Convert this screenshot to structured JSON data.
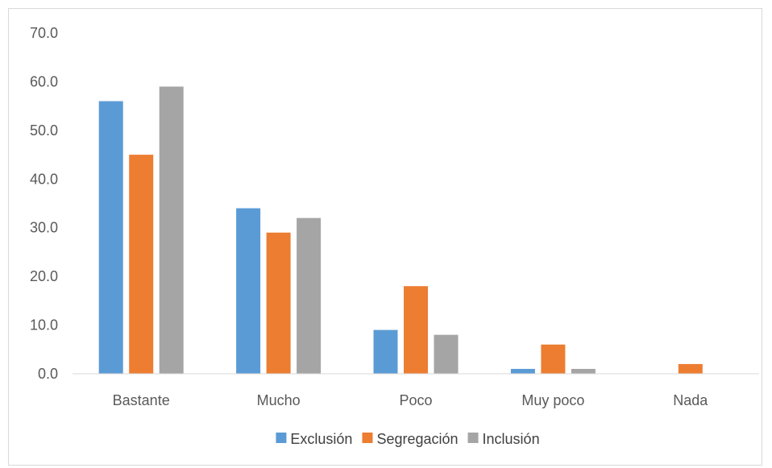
{
  "chart_data": {
    "type": "bar",
    "categories": [
      "Bastante",
      "Mucho",
      "Poco",
      "Muy poco",
      "Nada"
    ],
    "series": [
      {
        "name": "Exclusión",
        "color": "#5b9bd5",
        "values": [
          56.0,
          34.0,
          9.0,
          1.0,
          0.0
        ]
      },
      {
        "name": "Segregación",
        "color": "#ed7d31",
        "values": [
          45.0,
          29.0,
          18.0,
          6.0,
          2.0
        ]
      },
      {
        "name": "Inclusión",
        "color": "#a5a5a5",
        "values": [
          59.0,
          32.0,
          8.0,
          1.0,
          0.0
        ]
      }
    ],
    "y_ticks": [
      "0.0",
      "10.0",
      "20.0",
      "30.0",
      "40.0",
      "50.0",
      "60.0",
      "70.0"
    ],
    "ylim": [
      0,
      70
    ],
    "legend_position": "bottom",
    "grid": false,
    "title": "",
    "xlabel": "",
    "ylabel": ""
  }
}
